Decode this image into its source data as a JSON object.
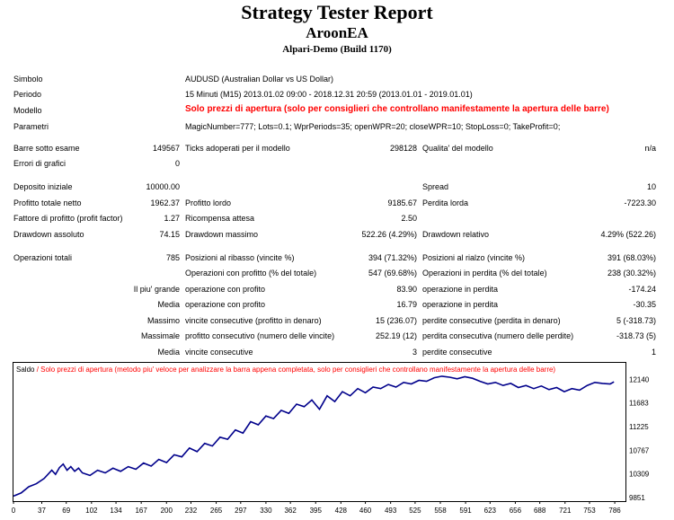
{
  "header": {
    "title": "Strategy Tester Report",
    "ea_name": "AroonEA",
    "server": "Alpari-Demo (Build 1170)"
  },
  "settings": [
    {
      "label": "Simbolo",
      "value": "AUDUSD (Australian Dollar vs US Dollar)"
    },
    {
      "label": "Periodo",
      "value": "15 Minuti (M15) 2013.01.02 09:00 - 2018.12.31 20:59 (2013.01.01 - 2019.01.01)"
    },
    {
      "label": "Modello",
      "value": "Solo prezzi di apertura (solo per consiglieri che controllano manifestamente la apertura delle barre)"
    },
    {
      "label": "Parametri",
      "value": "MagicNumber=777; Lots=0.1; WprPeriods=35; openWPR=20; closeWPR=10; StopLoss=0; TakeProfit=0;"
    }
  ],
  "rows": {
    "bars": [
      "Barre sotto esame",
      "149567",
      "Ticks adoperati per il modello",
      "298128",
      "Qualita' del modello",
      "n/a"
    ],
    "errors": [
      "Errori di grafici",
      "0"
    ],
    "deposit": [
      "Deposito iniziale",
      "10000.00",
      "Spread",
      "10"
    ],
    "net": [
      "Profitto totale netto",
      "1962.37",
      "Profitto lordo",
      "9185.67",
      "Perdita lorda",
      "-7223.30"
    ],
    "pf": [
      "Fattore di profitto (profit factor)",
      "1.27",
      "Ricompensa attesa",
      "2.50"
    ],
    "dd": [
      "Drawdown assoluto",
      "74.15",
      "Drawdown massimo",
      "522.26 (4.29%)",
      "Drawdown relativo",
      "4.29% (522.26)"
    ],
    "trades": [
      "Operazioni totali",
      "785",
      "Posizioni al ribasso (vincite %)",
      "394 (71.32%)",
      "Posizioni al rialzo (vincite %)",
      "391 (68.03%)"
    ],
    "profit_trades": [
      "Operazioni con profitto (% del totale)",
      "547 (69.68%)",
      "Operazioni in perdita (% del totale)",
      "238 (30.32%)"
    ],
    "largest": [
      "Il piu' grande",
      "operazione con profito",
      "83.90",
      "operazione in perdita",
      "-174.24"
    ],
    "average": [
      "Media",
      "operazione con profito",
      "16.79",
      "operazione in perdita",
      "-30.35"
    ],
    "max_consec": [
      "Massimo",
      "vincite consecutive (profitto in denaro)",
      "15 (236.07)",
      "perdite consecutive (perdita in denaro)",
      "5 (-318.73)"
    ],
    "maximal": [
      "Massimale",
      "profitto consecutivo (numero delle vincite)",
      "252.19 (12)",
      "perdita consecutiva (numero delle perdite)",
      "-318.73 (5)"
    ],
    "avg_consec": [
      "Media",
      "vincite consecutive",
      "3",
      "perdite consecutive",
      "1"
    ]
  },
  "colors": {
    "line": "#00008b",
    "label_red": "#ff0000"
  },
  "chart_data": {
    "type": "line",
    "legend_black": "Saldo",
    "legend_red": " / Solo prezzi di apertura (metodo piu' veloce per analizzare la barra appena completata, solo per consiglieri che controllano manifestamente la apertura delle barre)",
    "x_ticks": [
      0,
      37,
      69,
      102,
      134,
      167,
      200,
      232,
      265,
      297,
      330,
      362,
      395,
      428,
      460,
      493,
      525,
      558,
      591,
      623,
      656,
      688,
      721,
      753,
      786
    ],
    "y_ticks": [
      9851,
      10309,
      10767,
      11225,
      11683,
      12140
    ],
    "xlim": [
      0,
      800
    ],
    "ylim": [
      9800,
      12250
    ],
    "grid": false,
    "x": [
      0,
      10,
      20,
      30,
      40,
      50,
      55,
      60,
      65,
      70,
      75,
      80,
      85,
      90,
      100,
      110,
      120,
      130,
      140,
      150,
      160,
      170,
      180,
      190,
      200,
      210,
      220,
      230,
      240,
      250,
      260,
      270,
      280,
      290,
      300,
      310,
      320,
      330,
      340,
      350,
      360,
      370,
      380,
      390,
      400,
      410,
      420,
      430,
      440,
      450,
      460,
      470,
      480,
      490,
      500,
      510,
      520,
      530,
      540,
      550,
      560,
      570,
      580,
      590,
      600,
      610,
      620,
      630,
      640,
      650,
      660,
      670,
      680,
      690,
      700,
      710,
      720,
      730,
      740,
      750,
      760,
      770,
      780,
      785
    ],
    "y": [
      9880,
      9940,
      10060,
      10120,
      10220,
      10380,
      10300,
      10430,
      10500,
      10380,
      10450,
      10360,
      10420,
      10330,
      10280,
      10380,
      10330,
      10420,
      10360,
      10450,
      10400,
      10520,
      10460,
      10590,
      10530,
      10680,
      10640,
      10810,
      10740,
      10900,
      10850,
      11020,
      10980,
      11160,
      11100,
      11320,
      11260,
      11430,
      11380,
      11540,
      11480,
      11660,
      11610,
      11740,
      11560,
      11820,
      11710,
      11900,
      11820,
      11960,
      11880,
      11990,
      11960,
      12040,
      11990,
      12080,
      12050,
      12120,
      12100,
      12170,
      12200,
      12180,
      12150,
      12190,
      12160,
      12100,
      12050,
      12080,
      12020,
      12060,
      11980,
      12020,
      11960,
      12010,
      11940,
      11980,
      11900,
      11960,
      11930,
      12020,
      12080,
      12060,
      12050,
      12090
    ]
  }
}
